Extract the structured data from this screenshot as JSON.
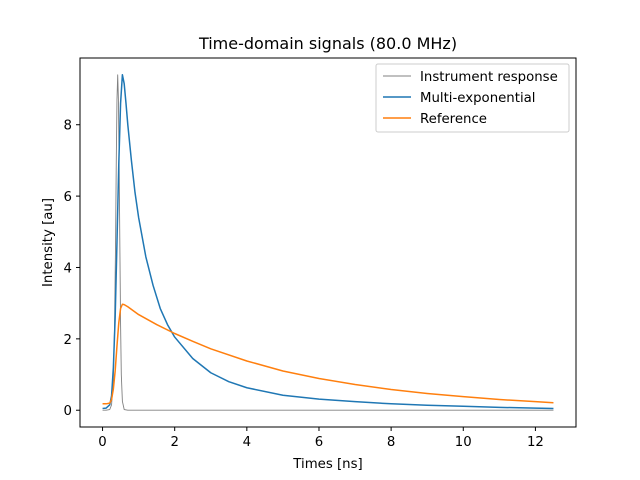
{
  "chart_data": {
    "type": "line",
    "title": "Time-domain signals (80.0 MHz)",
    "xlabel": "Times [ns]",
    "ylabel": "Intensity [au]",
    "xlim": [
      -0.625,
      13.125
    ],
    "ylim": [
      -0.47,
      9.87
    ],
    "xticks": [
      0,
      2,
      4,
      6,
      8,
      10,
      12
    ],
    "yticks": [
      0,
      2,
      4,
      6,
      8
    ],
    "grid": false,
    "legend_position": "top-right",
    "series": [
      {
        "name": "Instrument response",
        "color": "#808080",
        "x": [
          0.0,
          0.1,
          0.2,
          0.25,
          0.3,
          0.33,
          0.36,
          0.38,
          0.4,
          0.42,
          0.44,
          0.46,
          0.48,
          0.5,
          0.52,
          0.55,
          0.6,
          0.7,
          1.0,
          2.0,
          4.0,
          6.0,
          8.0,
          10.0,
          12.5
        ],
        "y": [
          0.0,
          0.0,
          0.02,
          0.15,
          0.9,
          2.2,
          4.6,
          6.9,
          8.7,
          9.4,
          8.7,
          6.9,
          4.6,
          2.4,
          1.0,
          0.25,
          0.02,
          0.0,
          0.0,
          0.0,
          0.0,
          0.0,
          0.0,
          0.0,
          0.0
        ]
      },
      {
        "name": "Multi-exponential",
        "color": "#1f77b4",
        "x": [
          0.0,
          0.1,
          0.2,
          0.25,
          0.3,
          0.35,
          0.4,
          0.45,
          0.5,
          0.55,
          0.6,
          0.65,
          0.7,
          0.8,
          0.9,
          1.0,
          1.2,
          1.4,
          1.6,
          1.8,
          2.0,
          2.5,
          3.0,
          3.5,
          4.0,
          5.0,
          6.0,
          7.0,
          8.0,
          9.0,
          10.0,
          11.0,
          12.0,
          12.5
        ],
        "y": [
          0.05,
          0.06,
          0.15,
          0.4,
          1.2,
          2.6,
          4.7,
          6.9,
          8.6,
          9.4,
          9.15,
          8.6,
          8.0,
          7.0,
          6.1,
          5.4,
          4.3,
          3.5,
          2.85,
          2.4,
          2.05,
          1.45,
          1.05,
          0.8,
          0.63,
          0.42,
          0.31,
          0.24,
          0.18,
          0.14,
          0.11,
          0.08,
          0.06,
          0.05
        ]
      },
      {
        "name": "Reference",
        "color": "#ff7f0e",
        "x": [
          0.0,
          0.1,
          0.2,
          0.25,
          0.3,
          0.35,
          0.4,
          0.45,
          0.5,
          0.55,
          0.6,
          0.7,
          1.0,
          1.5,
          2.0,
          2.5,
          3.0,
          4.0,
          5.0,
          6.0,
          7.0,
          8.0,
          9.0,
          10.0,
          11.0,
          12.0,
          12.5
        ],
        "y": [
          0.18,
          0.18,
          0.2,
          0.3,
          0.6,
          1.1,
          1.8,
          2.45,
          2.85,
          2.97,
          2.96,
          2.9,
          2.68,
          2.4,
          2.15,
          1.93,
          1.72,
          1.38,
          1.1,
          0.89,
          0.72,
          0.58,
          0.47,
          0.38,
          0.3,
          0.24,
          0.21
        ]
      }
    ]
  }
}
